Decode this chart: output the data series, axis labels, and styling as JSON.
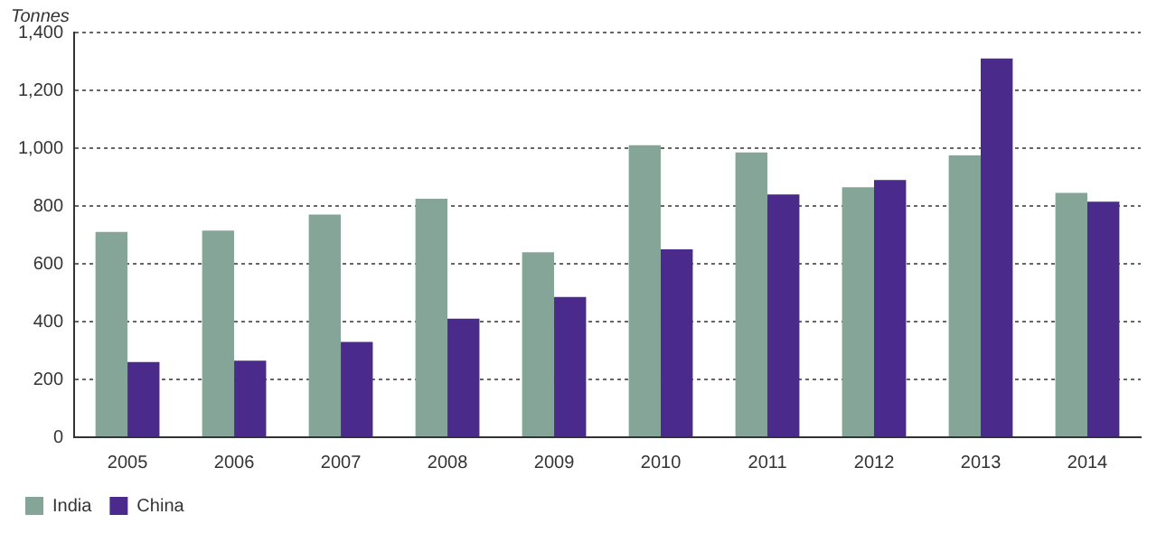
{
  "chart_data": {
    "type": "bar",
    "ylabel": "Tonnes",
    "categories": [
      "2005",
      "2006",
      "2007",
      "2008",
      "2009",
      "2010",
      "2011",
      "2012",
      "2013",
      "2014"
    ],
    "series": [
      {
        "name": "India",
        "color": "#84a598",
        "values": [
          710,
          715,
          770,
          825,
          640,
          1010,
          985,
          865,
          975,
          845
        ]
      },
      {
        "name": "China",
        "color": "#4a2a8a",
        "values": [
          260,
          265,
          330,
          410,
          485,
          650,
          840,
          890,
          1310,
          815
        ]
      }
    ],
    "ylim": [
      0,
      1400
    ],
    "yticks": [
      0,
      200,
      400,
      600,
      800,
      {
        "value": 1000,
        "label": "1,000"
      },
      {
        "value": 1200,
        "label": "1,200"
      },
      {
        "value": 1400,
        "label": "1,400"
      }
    ],
    "grid": "y",
    "legend": "bottom left"
  }
}
